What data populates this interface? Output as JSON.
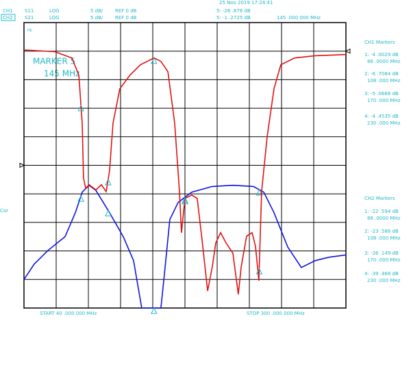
{
  "header": {
    "ch1": [
      "CH1",
      "S11",
      "LOG",
      "5 dB/",
      "REF 0 dB"
    ],
    "ch2": [
      "CH2",
      "S21",
      "LOG",
      "5 dB/",
      "REF 0 dB"
    ],
    "date": "25 Nov 2019  17:24:41",
    "marker_ch1": "5: -26 .876 dB",
    "marker_ch2": "5: -1 .2725 dB",
    "marker_freq": "145 .000 000 MHz",
    "hold": "Hp",
    "cor": "Cor",
    "start": "START   40 .000 000 MHz",
    "stop": "STOP   300 .000 000 MHz"
  },
  "ch1_markers": {
    "title": "CH1  Markers",
    "items": [
      [
        "1: -4 .0029 dB",
        "86 .0000 MHz"
      ],
      [
        "2: -6 .7084 dB",
        "108 .000 MHz"
      ],
      [
        "3: -5 .0666 dB",
        "170 .000 MHz"
      ],
      [
        "4: -4 .4535 dB",
        "230 .000 MHz"
      ]
    ]
  },
  "ch2_markers": {
    "title": "CH2  Markers",
    "items": [
      [
        "1: -22 .594 dB",
        "86 .0000 MHz"
      ],
      [
        "2: -23 .586 dB",
        "108 .000 MHz"
      ],
      [
        "3: -26 .149 dB",
        "170 .000 MHz"
      ],
      [
        "4: -39 .468 dB",
        "230 .000 MHz"
      ]
    ]
  },
  "chart_data": {
    "type": "line",
    "annotations": [
      "MARKER 5",
      "145 MHz"
    ],
    "xlim": [
      40,
      300
    ],
    "xticks": [
      40,
      66,
      92,
      118,
      144,
      170,
      196,
      222,
      248,
      274,
      300
    ],
    "ylim": [
      -25,
      25
    ],
    "yticks": [
      -25,
      -20,
      -15,
      -10,
      -5,
      0,
      5,
      10,
      15,
      20,
      25
    ],
    "y2lim": [
      -45,
      5
    ],
    "grid": true,
    "series": [
      {
        "name": "CH1",
        "color": "#1010e0",
        "axis": "y",
        "x": [
          40,
          48.3,
          59.4,
          73.2,
          81.5,
          87,
          92.6,
          98.1,
          109.1,
          120.2,
          128.5,
          135.1,
          150.6,
          153.4,
          157.8,
          164.5,
          175.5,
          192.1,
          208.7,
          225.3,
          233.6,
          241.9,
          253,
          264,
          275.1,
          286.2,
          300
        ],
        "values": [
          -20,
          -17.3,
          -14.9,
          -12.5,
          -8.3,
          -4.7,
          -3.5,
          -4.4,
          -8.3,
          -12.5,
          -16.7,
          -25,
          -25,
          -19.1,
          -9.5,
          -6.5,
          -4.7,
          -3.7,
          -3.5,
          -3.7,
          -4.7,
          -8.3,
          -14.3,
          -17.9,
          -16.7,
          -16.1,
          -15.7
        ]
      },
      {
        "name": "CH2",
        "color": "#e01010",
        "axis": "y2",
        "x": [
          40,
          64.9,
          78.7,
          84.3,
          87,
          88.1,
          89.8,
          92.6,
          98.1,
          102.5,
          106.4,
          109.1,
          111.9,
          117.4,
          125.7,
          134,
          145.1,
          150.6,
          156.2,
          161.7,
          165.6,
          167.2,
          170,
          175.5,
          179.9,
          183.8,
          188.3,
          192.1,
          194.9,
          198.8,
          203.2,
          208.7,
          213.1,
          215.4,
          219.8,
          224.2,
          227,
          229.7,
          231.9,
          236.4,
          241.9,
          247.4,
          258.5,
          275.1,
          300
        ],
        "values": [
          0.2,
          -0.1,
          -1.2,
          -4.2,
          -12.6,
          -22.2,
          -24,
          -23.4,
          -24.3,
          -23.4,
          -24.6,
          -21,
          -12.6,
          -6.6,
          -4.2,
          -2.4,
          -1.2,
          -1.8,
          -3.6,
          -12.6,
          -24.6,
          -31.8,
          -25.8,
          -25.2,
          -25.8,
          -33,
          -42,
          -37.8,
          -33.6,
          -31.8,
          -33.6,
          -35.4,
          -42.6,
          -37.8,
          -32.4,
          -31.8,
          -34.2,
          -40.2,
          -24.6,
          -15,
          -6.6,
          -2.4,
          -1.2,
          -0.8,
          -0.6
        ]
      }
    ]
  }
}
